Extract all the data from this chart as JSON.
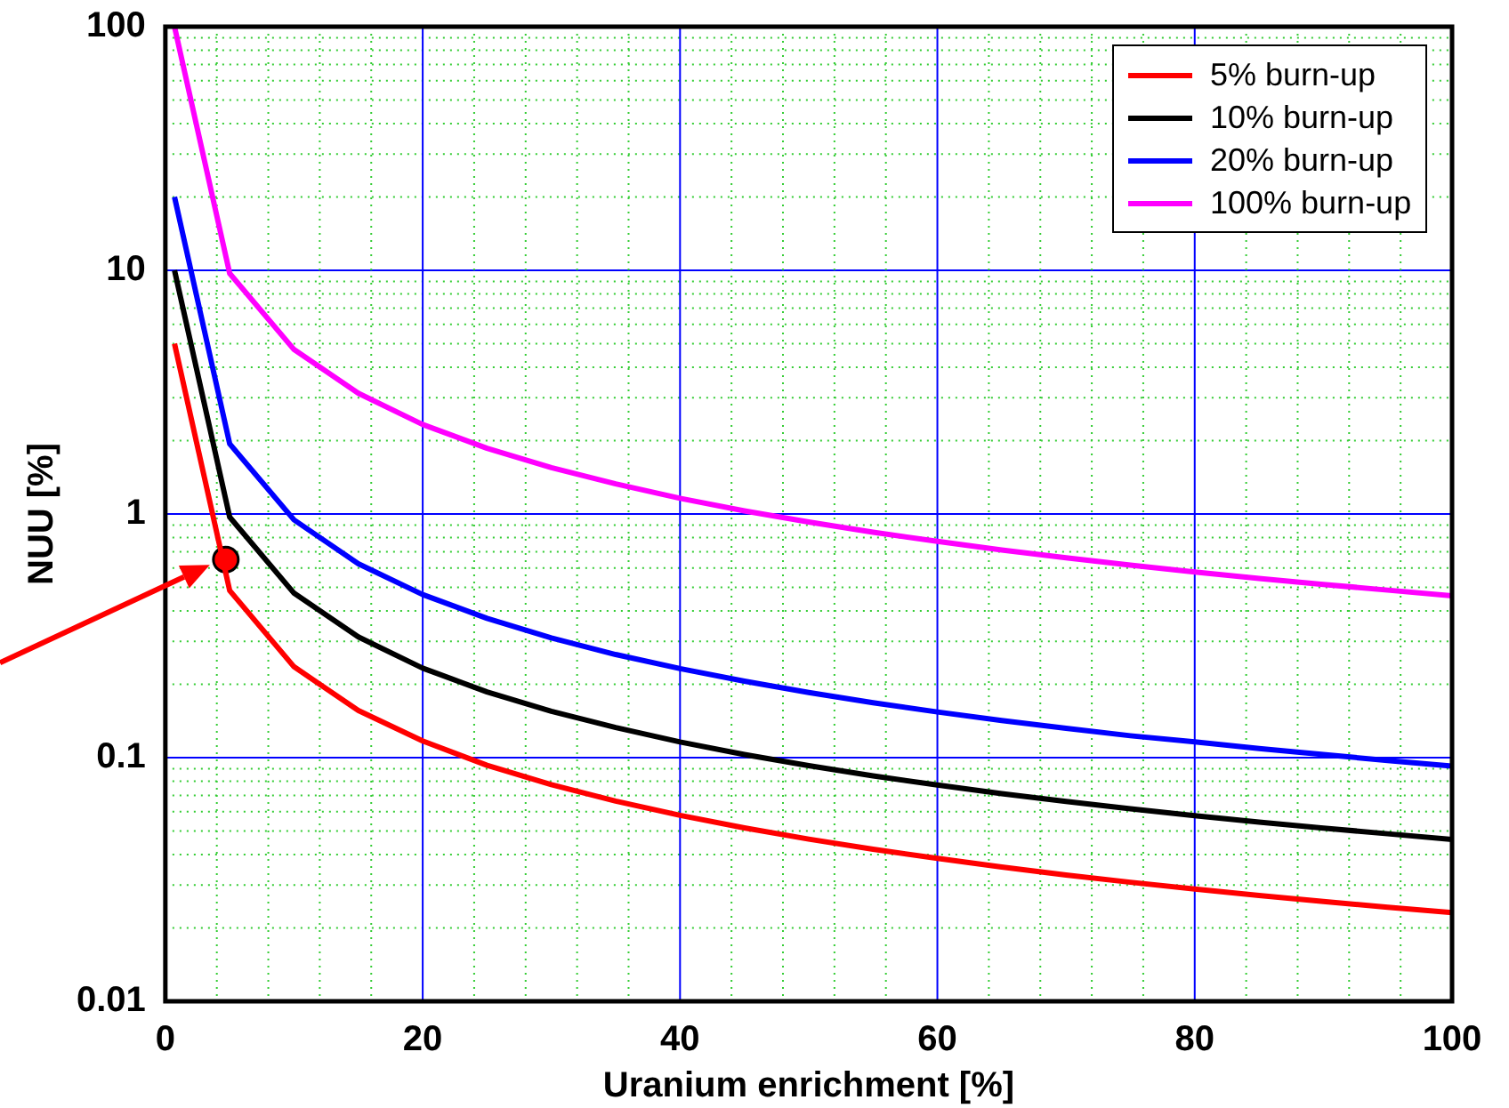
{
  "chart_data": {
    "type": "line",
    "xlabel": "Uranium enrichment [%]",
    "ylabel": "NUU [%]",
    "x": [
      0.711,
      5,
      10,
      15,
      20,
      25,
      30,
      35,
      40,
      45,
      50,
      55,
      60,
      65,
      70,
      75,
      80,
      85,
      90,
      95,
      100
    ],
    "series": [
      {
        "name": "5% burn-up",
        "color": "#ff0000",
        "values": [
          5,
          0.485,
          0.236,
          0.156,
          0.117,
          0.093,
          0.0775,
          0.0663,
          0.058,
          0.0515,
          0.0463,
          0.0421,
          0.0386,
          0.0356,
          0.033,
          0.0308,
          0.0289,
          0.0272,
          0.0257,
          0.0243,
          0.0231
        ]
      },
      {
        "name": "10% burn-up",
        "color": "#000000",
        "values": [
          10,
          0.971,
          0.473,
          0.313,
          0.233,
          0.186,
          0.155,
          0.133,
          0.116,
          0.103,
          0.0927,
          0.0842,
          0.0772,
          0.0712,
          0.0661,
          0.0617,
          0.0578,
          0.0544,
          0.0514,
          0.0487,
          0.0462
        ]
      },
      {
        "name": "20% burn-up",
        "color": "#0000ff",
        "values": [
          20,
          1.94,
          0.946,
          0.625,
          0.467,
          0.373,
          0.31,
          0.265,
          0.232,
          0.206,
          0.185,
          0.168,
          0.154,
          0.142,
          0.132,
          0.123,
          0.116,
          0.109,
          0.103,
          0.0973,
          0.0924
        ]
      },
      {
        "name": "100% burn-up",
        "color": "#ff00ff",
        "values": [
          100,
          9.71,
          4.73,
          3.13,
          2.33,
          1.86,
          1.55,
          1.33,
          1.16,
          1.03,
          0.927,
          0.842,
          0.772,
          0.712,
          0.661,
          0.617,
          0.578,
          0.544,
          0.514,
          0.487,
          0.462
        ]
      },
      {
        "type": "scatter",
        "color": "#ff0000",
        "marker": "circle",
        "x": [
          4.7
        ],
        "values": [
          0.65
        ]
      }
    ],
    "xlim": [
      0,
      100
    ],
    "xticks": [
      0,
      {
        "value": 4,
        "label": null
      },
      {
        "value": 8,
        "label": null
      },
      {
        "value": 12,
        "label": null
      },
      {
        "value": 16,
        "label": null
      },
      20,
      {
        "value": 24,
        "label": null
      },
      {
        "value": 28,
        "label": null
      },
      {
        "value": 32,
        "label": null
      },
      {
        "value": 36,
        "label": null
      },
      40,
      {
        "value": 44,
        "label": null
      },
      {
        "value": 48,
        "label": null
      },
      {
        "value": 52,
        "label": null
      },
      {
        "value": 56,
        "label": null
      },
      60,
      {
        "value": 64,
        "label": null
      },
      {
        "value": 68,
        "label": null
      },
      {
        "value": 72,
        "label": null
      },
      {
        "value": 76,
        "label": null
      },
      80,
      {
        "value": 84,
        "label": null
      },
      {
        "value": 88,
        "label": null
      },
      {
        "value": 92,
        "label": null
      },
      {
        "value": 96,
        "label": null
      },
      100
    ],
    "ylim": [
      0.01,
      100
    ],
    "yticks": [
      0.01,
      {
        "value": 0.02,
        "label": null
      },
      {
        "value": 0.03,
        "label": null
      },
      {
        "value": 0.04,
        "label": null
      },
      {
        "value": 0.05,
        "label": null
      },
      {
        "value": 0.06,
        "label": null
      },
      {
        "value": 0.07,
        "label": null
      },
      {
        "value": 0.08,
        "label": null
      },
      {
        "value": 0.09,
        "label": null
      },
      0.1,
      {
        "value": 0.2,
        "label": null
      },
      {
        "value": 0.3,
        "label": null
      },
      {
        "value": 0.4,
        "label": null
      },
      {
        "value": 0.5,
        "label": null
      },
      {
        "value": 0.6,
        "label": null
      },
      {
        "value": 0.7,
        "label": null
      },
      {
        "value": 0.8,
        "label": null
      },
      {
        "value": 0.9,
        "label": null
      },
      1,
      {
        "value": 2,
        "label": null
      },
      {
        "value": 3,
        "label": null
      },
      {
        "value": 4,
        "label": null
      },
      {
        "value": 5,
        "label": null
      },
      {
        "value": 6,
        "label": null
      },
      {
        "value": 7,
        "label": null
      },
      {
        "value": 8,
        "label": null
      },
      {
        "value": 9,
        "label": null
      },
      10,
      {
        "value": 20,
        "label": null
      },
      {
        "value": 30,
        "label": null
      },
      {
        "value": 40,
        "label": null
      },
      {
        "value": 50,
        "label": null
      },
      {
        "value": 60,
        "label": null
      },
      {
        "value": 70,
        "label": null
      },
      {
        "value": 80,
        "label": null
      },
      {
        "value": 90,
        "label": null
      },
      100
    ],
    "log": "y",
    "grid": true,
    "legend": "top right",
    "marker": "none",
    "line_style": "solid"
  }
}
